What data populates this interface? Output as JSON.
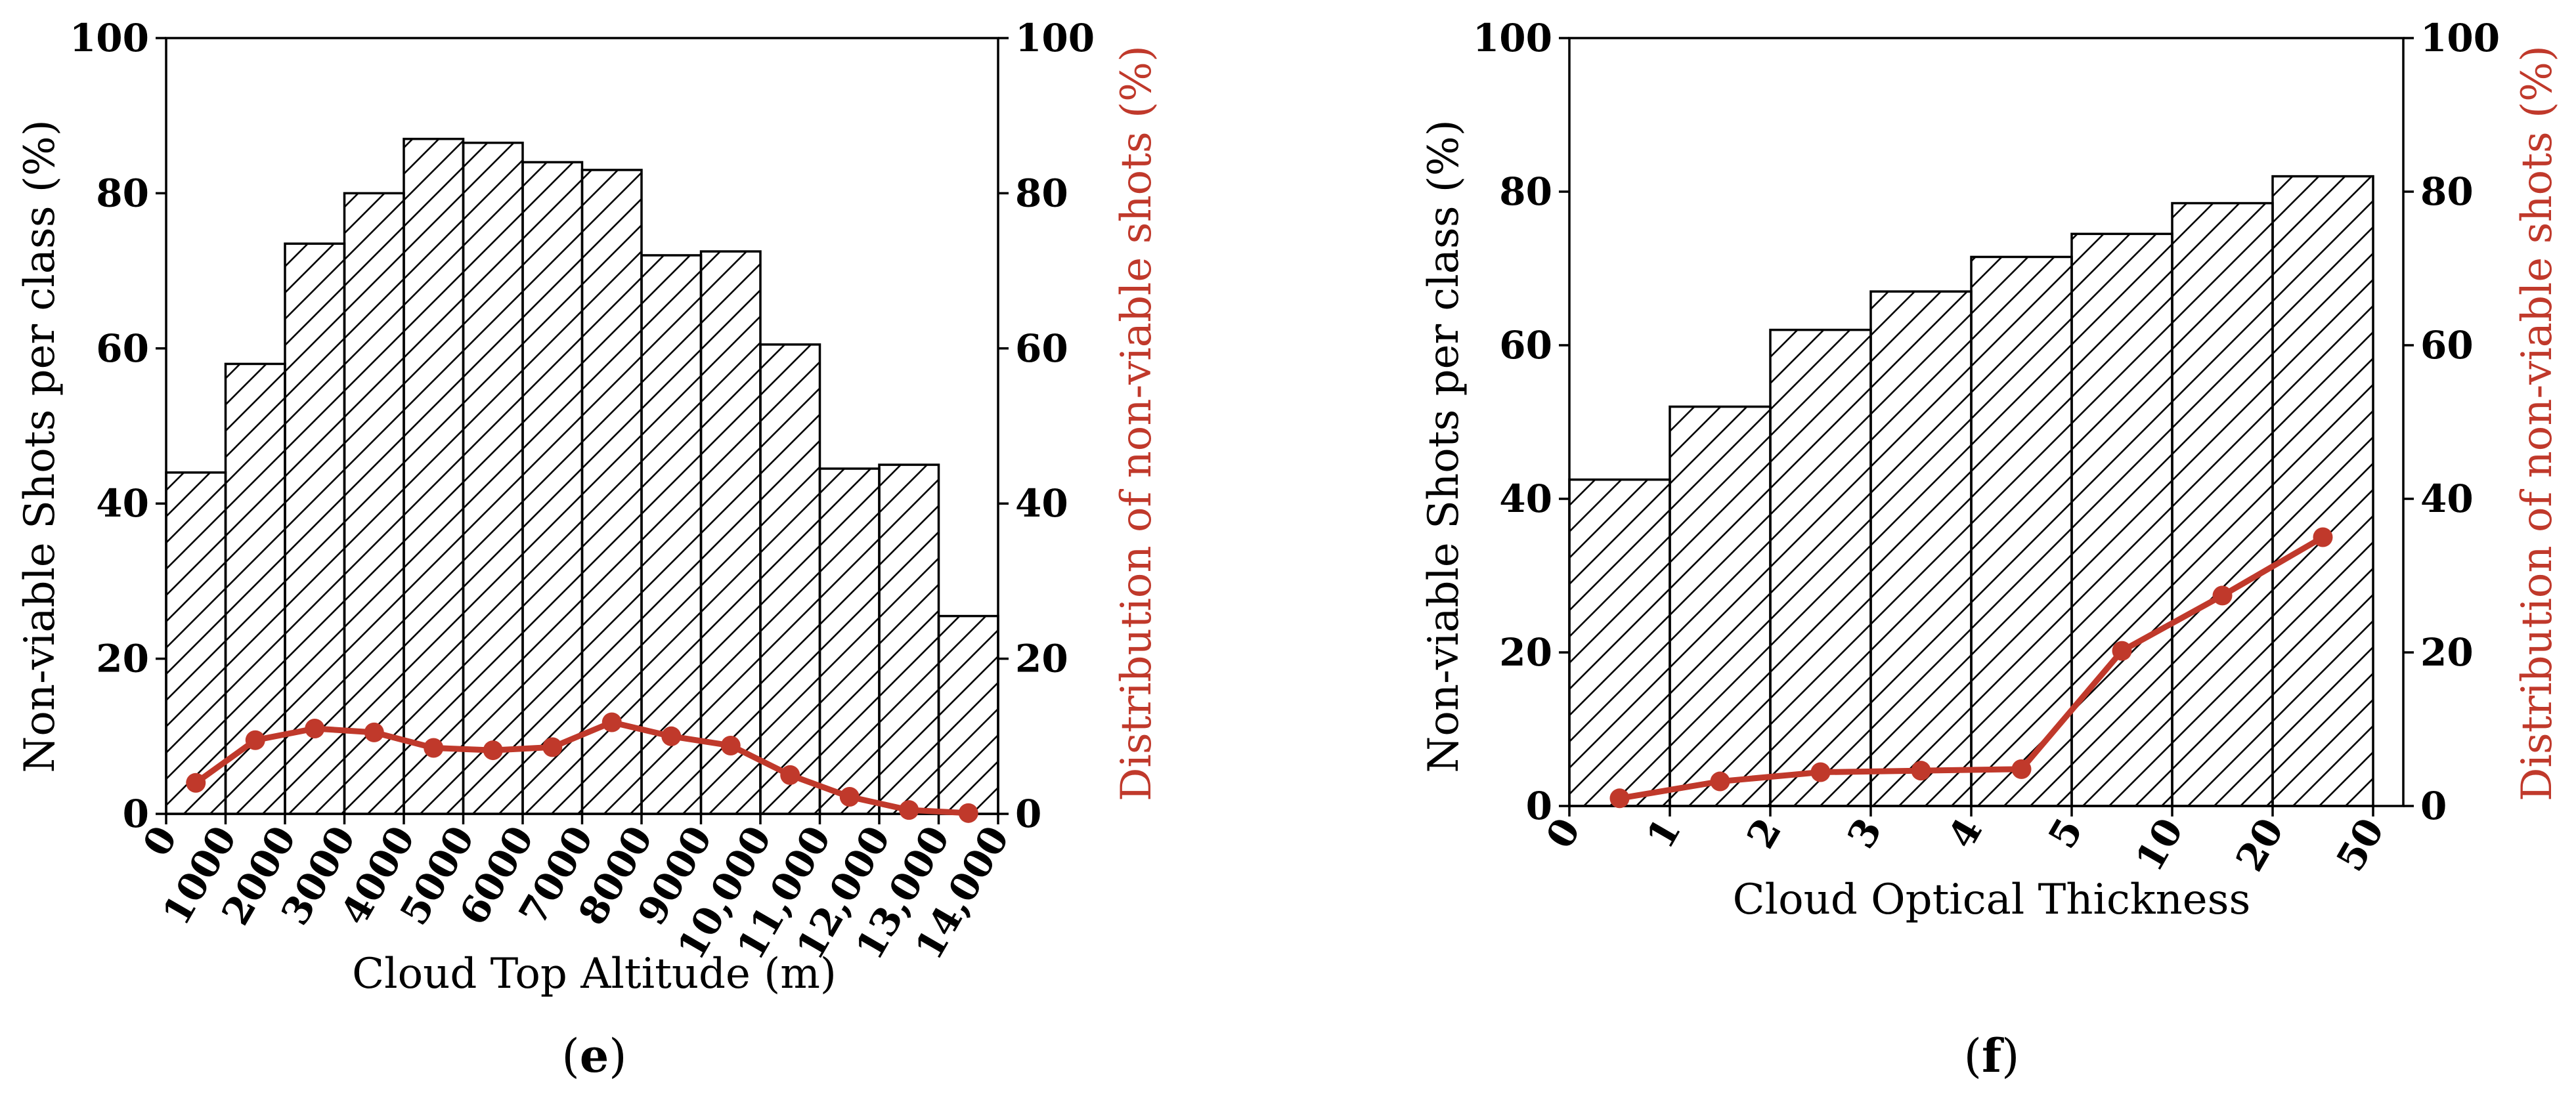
{
  "colors": {
    "line": "#c0392b",
    "bar_edge": "#000000",
    "hatch": "#000000"
  },
  "chart_data": [
    {
      "panel_label": [
        "(",
        "e",
        ")"
      ],
      "type": "bar",
      "bar_edges": [
        0,
        1000,
        2000,
        3000,
        4000,
        5000,
        6000,
        7000,
        8000,
        9000,
        10000,
        11000,
        12000,
        13000,
        14000
      ],
      "x_tick_labels": [
        "0",
        "1000",
        "2000",
        "3000",
        "4000",
        "5000",
        "6000",
        "7000",
        "8000",
        "9000",
        "10,000",
        "11,000",
        "12,000",
        "13,000",
        "14,000"
      ],
      "bar_values": [
        44,
        58,
        73.5,
        80,
        87,
        86.5,
        84,
        83,
        72,
        72.5,
        60.5,
        44.5,
        45,
        25.5
      ],
      "line_values": [
        4,
        9.5,
        11,
        10.5,
        8.5,
        8.2,
        8.6,
        11.8,
        10,
        8.8,
        5,
        2.2,
        0.5,
        0.1
      ],
      "xlabel": "Cloud Top Altitude (m)",
      "ylabel_left": "Non-viable Shots per class (%)",
      "ylabel_right": "Distribution of non-viable shots (%)",
      "ylim": [
        0,
        100
      ],
      "y_ticks": [
        0,
        20,
        40,
        60,
        80,
        100
      ],
      "bar_hatch": "diagonal"
    },
    {
      "panel_label": [
        "(",
        "f",
        ")"
      ],
      "type": "bar",
      "bar_edges": [
        0,
        1,
        2,
        3,
        4,
        5,
        10,
        20,
        50
      ],
      "x_tick_labels": [
        "0",
        "1",
        "2",
        "3",
        "4",
        "5",
        "10",
        "20",
        "50"
      ],
      "bar_values": [
        42.5,
        52,
        62,
        67,
        71.5,
        74.5,
        78.5,
        82
      ],
      "line_values": [
        1,
        3.2,
        4.4,
        4.6,
        4.8,
        20.2,
        27.4,
        35
      ],
      "xlabel": "Cloud Optical Thickness",
      "ylabel_left": "Non-viable Shots per class (%)",
      "ylabel_right": "Distribution of non-viable shots (%)",
      "ylim": [
        0,
        100
      ],
      "y_ticks": [
        0,
        20,
        40,
        60,
        80,
        100
      ],
      "bar_hatch": "diagonal"
    }
  ]
}
